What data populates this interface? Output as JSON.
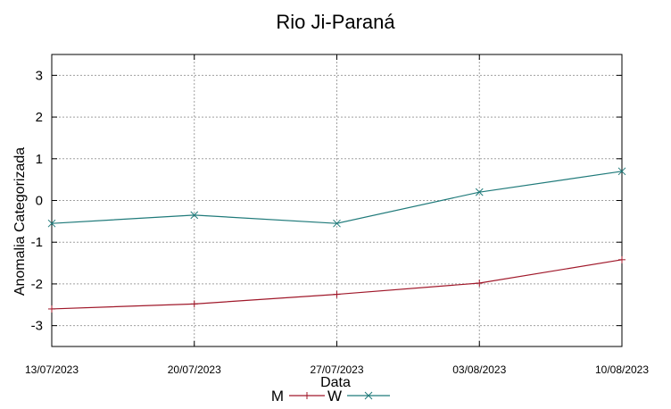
{
  "chart_data": {
    "type": "line",
    "title": "Rio Ji-Paraná",
    "xlabel": "Data",
    "ylabel": "Anomalia Categorizada",
    "categories": [
      "13/07/2023",
      "20/07/2023",
      "27/07/2023",
      "03/08/2023",
      "10/08/2023"
    ],
    "ylim": [
      -3.5,
      3.5
    ],
    "yticks": [
      3,
      2,
      1,
      0,
      -1,
      -2,
      -3
    ],
    "grid": true,
    "legend_position": "bottom-center",
    "series": [
      {
        "name": "M",
        "color": "#a0182a",
        "marker": "plus",
        "values": [
          -2.6,
          -2.48,
          -2.25,
          -1.98,
          -1.42
        ]
      },
      {
        "name": "W",
        "color": "#1f7a7a",
        "marker": "cross",
        "values": [
          -0.55,
          -0.35,
          -0.55,
          0.2,
          0.7
        ]
      }
    ]
  }
}
